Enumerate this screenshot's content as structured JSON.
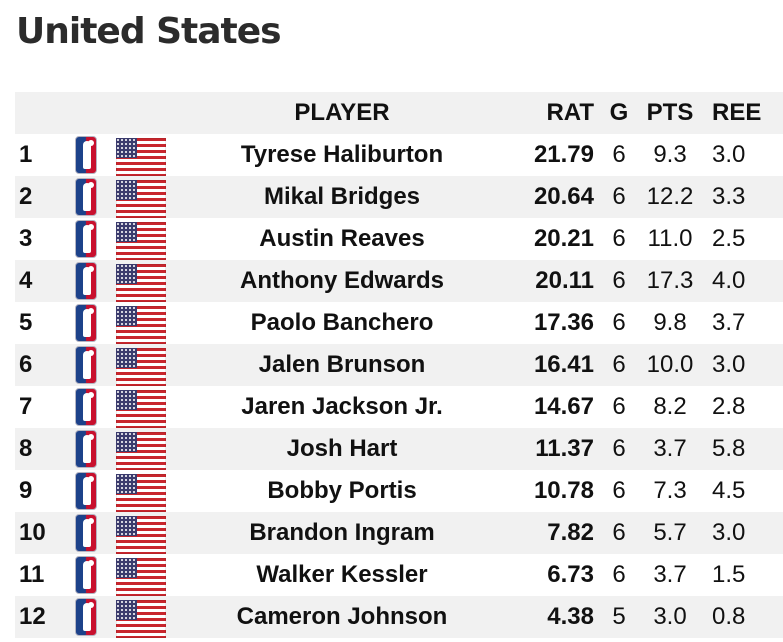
{
  "title": "United States",
  "columns": {
    "player": "PLAYER",
    "rat": "RAT",
    "g": "G",
    "pts": "PTS",
    "reb": "REE"
  },
  "icons": {
    "league_logo": "nba-logo-icon",
    "flag": "us-flag-icon"
  },
  "colors": {
    "row_shade": "#f1f1f1",
    "title": "#2b2b2b",
    "nba_blue": "#1d428a",
    "nba_red": "#c8102e",
    "flag_red": "#c8262d",
    "flag_blue": "#3b3b6d"
  },
  "rows": [
    {
      "rank": "1",
      "player": "Tyrese Haliburton",
      "rat": "21.79",
      "g": "6",
      "pts": "9.3",
      "reb": "3.0"
    },
    {
      "rank": "2",
      "player": "Mikal Bridges",
      "rat": "20.64",
      "g": "6",
      "pts": "12.2",
      "reb": "3.3"
    },
    {
      "rank": "3",
      "player": "Austin Reaves",
      "rat": "20.21",
      "g": "6",
      "pts": "11.0",
      "reb": "2.5"
    },
    {
      "rank": "4",
      "player": "Anthony Edwards",
      "rat": "20.11",
      "g": "6",
      "pts": "17.3",
      "reb": "4.0"
    },
    {
      "rank": "5",
      "player": "Paolo Banchero",
      "rat": "17.36",
      "g": "6",
      "pts": "9.8",
      "reb": "3.7"
    },
    {
      "rank": "6",
      "player": "Jalen Brunson",
      "rat": "16.41",
      "g": "6",
      "pts": "10.0",
      "reb": "3.0"
    },
    {
      "rank": "7",
      "player": "Jaren Jackson Jr.",
      "rat": "14.67",
      "g": "6",
      "pts": "8.2",
      "reb": "2.8"
    },
    {
      "rank": "8",
      "player": "Josh Hart",
      "rat": "11.37",
      "g": "6",
      "pts": "3.7",
      "reb": "5.8"
    },
    {
      "rank": "9",
      "player": "Bobby Portis",
      "rat": "10.78",
      "g": "6",
      "pts": "7.3",
      "reb": "4.5"
    },
    {
      "rank": "10",
      "player": "Brandon Ingram",
      "rat": "7.82",
      "g": "6",
      "pts": "5.7",
      "reb": "3.0"
    },
    {
      "rank": "11",
      "player": "Walker Kessler",
      "rat": "6.73",
      "g": "6",
      "pts": "3.7",
      "reb": "1.5"
    },
    {
      "rank": "12",
      "player": "Cameron Johnson",
      "rat": "4.38",
      "g": "5",
      "pts": "3.0",
      "reb": "0.8"
    }
  ]
}
